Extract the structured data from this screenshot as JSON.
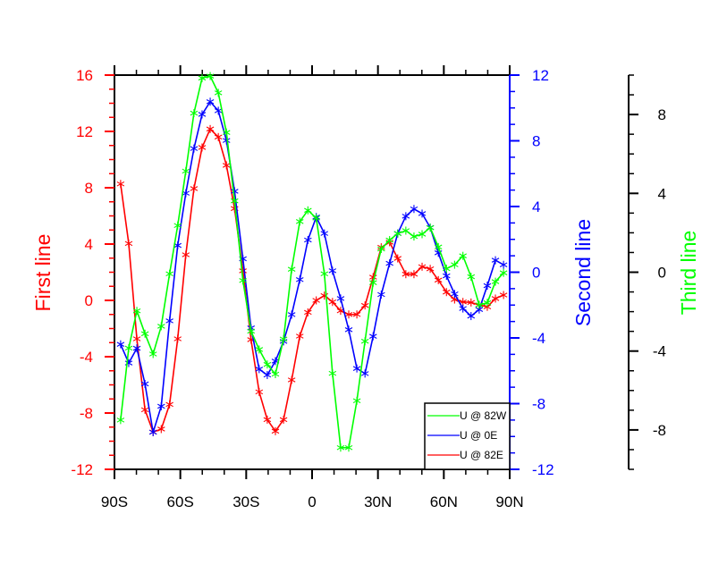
{
  "chart_data": {
    "type": "line",
    "x": [
      -87.2,
      -83.5,
      -79.8,
      -76.1,
      -72.4,
      -68.7,
      -64.9,
      -61.2,
      -57.5,
      -53.8,
      -50.1,
      -46.4,
      -42.7,
      -39.0,
      -35.3,
      -31.5,
      -27.8,
      -24.1,
      -20.4,
      -16.7,
      -13.0,
      -9.3,
      -5.6,
      -1.9,
      1.9,
      5.6,
      9.3,
      13.0,
      16.7,
      20.4,
      24.1,
      27.8,
      31.5,
      35.3,
      39.0,
      42.7,
      46.4,
      50.1,
      53.8,
      57.5,
      61.2,
      64.9,
      68.7,
      72.4,
      76.1,
      79.8,
      83.5,
      87.2
    ],
    "xlim": [
      -90,
      90
    ],
    "xticks": [
      -90,
      -60,
      -30,
      0,
      30,
      60,
      90
    ],
    "xtick_labels": [
      "90S",
      "60S",
      "30S",
      "0",
      "30N",
      "60N",
      "90N"
    ],
    "series": [
      {
        "name": "U @ 82E",
        "axis": "first",
        "color": "#ff0000",
        "values": [
          8.27,
          4.04,
          -2.73,
          -7.77,
          -9.35,
          -9.14,
          -7.39,
          -2.73,
          3.24,
          7.94,
          10.86,
          12.17,
          11.6,
          9.59,
          6.52,
          2.1,
          -2.79,
          -6.5,
          -8.47,
          -9.29,
          -8.47,
          -5.65,
          -2.54,
          -0.85,
          0.0,
          0.34,
          -0.11,
          -0.74,
          -1.0,
          -1.0,
          -0.36,
          1.65,
          3.77,
          4.13,
          2.98,
          1.86,
          1.86,
          2.39,
          2.24,
          1.44,
          0.59,
          0.06,
          -0.11,
          -0.15,
          -0.32,
          -0.46,
          0.13,
          0.38
        ]
      },
      {
        "name": "U @ 0E",
        "axis": "second",
        "color": "#0000ff",
        "values": [
          -4.39,
          -5.53,
          -4.63,
          -6.8,
          -9.74,
          -8.16,
          -2.96,
          1.63,
          4.81,
          7.53,
          9.61,
          10.38,
          9.83,
          8.02,
          4.93,
          0.82,
          -3.39,
          -5.9,
          -6.26,
          -5.41,
          -4.21,
          -2.58,
          -0.45,
          1.96,
          3.36,
          2.36,
          0.09,
          -1.6,
          -3.5,
          -5.86,
          -6.17,
          -3.9,
          -1.36,
          0.54,
          2.36,
          3.41,
          3.85,
          3.57,
          2.72,
          1.18,
          -0.22,
          -1.32,
          -2.21,
          -2.67,
          -2.27,
          -0.82,
          0.73,
          0.45
        ]
      },
      {
        "name": "U @ 82W",
        "axis": "third",
        "color": "#00ff00",
        "values": [
          -7.5,
          -3.85,
          -1.96,
          -3.12,
          -4.15,
          -2.74,
          -0.08,
          2.37,
          5.13,
          8.07,
          9.85,
          9.95,
          9.1,
          7.09,
          3.62,
          -0.42,
          -2.99,
          -3.92,
          -4.68,
          -5.17,
          -3.39,
          0.15,
          2.57,
          3.14,
          2.75,
          -0.08,
          -5.13,
          -8.9,
          -8.9,
          -6.52,
          -3.5,
          -0.53,
          1.18,
          1.63,
          1.96,
          2.11,
          1.81,
          1.93,
          2.26,
          1.28,
          0.18,
          0.38,
          0.83,
          -0.23,
          -1.66,
          -1.55,
          -0.48,
          -0.03
        ]
      }
    ],
    "axes": {
      "first": {
        "label": "First line",
        "color": "#ff0000",
        "ylim": [
          -12,
          16
        ],
        "ticks": [
          -12,
          -8,
          -4,
          0,
          4,
          8,
          12,
          16
        ]
      },
      "second": {
        "label": "Second line",
        "color": "#0000ff",
        "ylim": [
          -12,
          12
        ],
        "ticks": [
          -12,
          -8,
          -4,
          0,
          4,
          8,
          12
        ]
      },
      "third": {
        "label": "Third line",
        "color": "#00ff00",
        "ylim": [
          -10,
          10
        ],
        "ticks": [
          -8,
          -4,
          0,
          4,
          8
        ]
      }
    },
    "legend": {
      "placement": "bottom-right",
      "entries": [
        "U @ 82W",
        "U @ 0E",
        "U @ 82E"
      ]
    },
    "marker": "asterisk",
    "grid": false
  }
}
